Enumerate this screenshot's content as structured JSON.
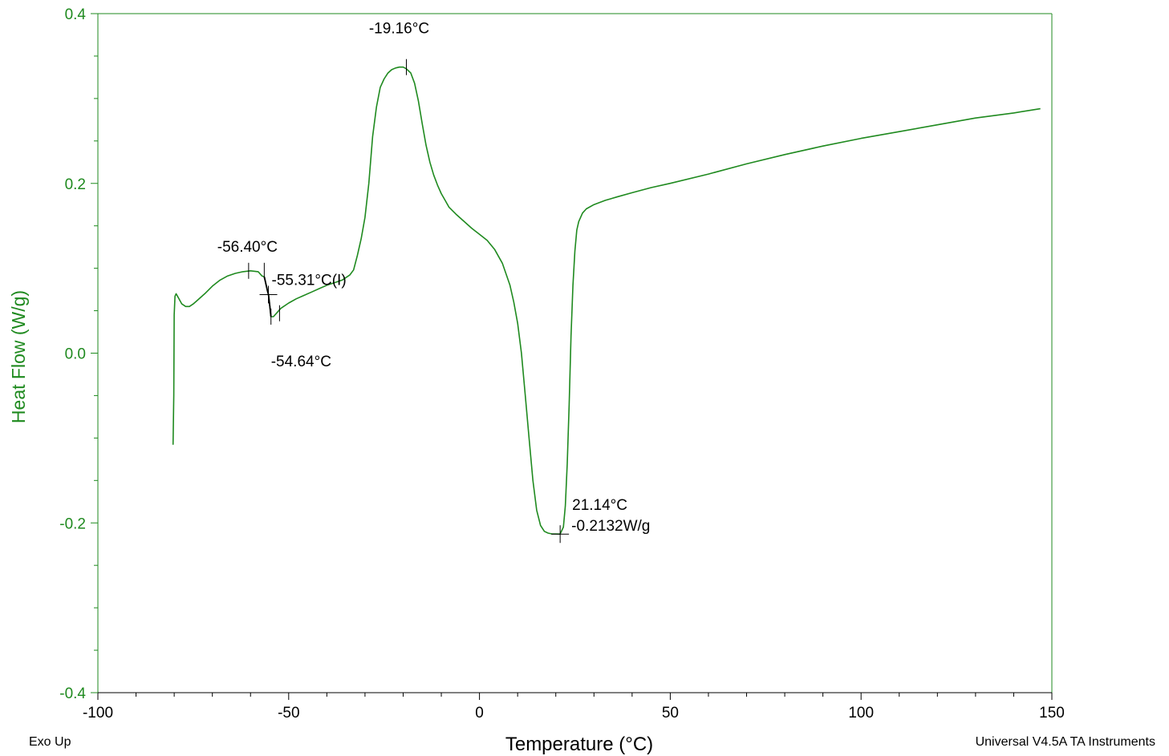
{
  "colors": {
    "series": "#1f8a1f",
    "axis_y": "#1f8a1f",
    "axis_x": "#000000",
    "markers": "#000000"
  },
  "footer": {
    "left": "Exo Up",
    "right": "Universal V4.5A TA Instruments"
  },
  "chart_data": {
    "type": "line",
    "xlabel": "Temperature (°C)",
    "ylabel": "Heat Flow (W/g)",
    "xlim": [
      -100,
      150
    ],
    "ylim": [
      -0.4,
      0.4
    ],
    "xticks": [
      -100,
      -50,
      0,
      50,
      100,
      150
    ],
    "xtick_labels": [
      "-100",
      "-50",
      "0",
      "50",
      "100",
      "150"
    ],
    "yticks": [
      -0.4,
      -0.2,
      0.0,
      0.2,
      0.4
    ],
    "ytick_labels": [
      "-0.4",
      "-0.2",
      "0.0",
      "0.2",
      "0.4"
    ],
    "grid": false,
    "series": [
      {
        "x": [
          -80.3,
          -80.1,
          -80.0,
          -79.8,
          -79.5,
          -79.0,
          -78.0,
          -77.0,
          -76.0,
          -75.0,
          -74.0,
          -72.0,
          -70.0,
          -68.0,
          -66.0,
          -64.0,
          -62.0,
          -60.0,
          -58.0,
          -57.0,
          -56.4,
          -56.0,
          -55.6,
          -55.3,
          -55.0,
          -54.64,
          -54.0,
          -53.0,
          -52.0,
          -50.0,
          -48.0,
          -46.0,
          -44.0,
          -42.0,
          -40.0,
          -38.0,
          -36.0,
          -34.0,
          -33.0,
          -32.0,
          -31.0,
          -30.0,
          -29.0,
          -28.0,
          -27.0,
          -26.0,
          -25.0,
          -24.0,
          -23.0,
          -22.0,
          -21.0,
          -20.0,
          -19.16,
          -18.0,
          -17.0,
          -16.0,
          -15.0,
          -14.0,
          -13.0,
          -12.0,
          -11.0,
          -10.0,
          -9.0,
          -8.0,
          -6.0,
          -4.0,
          -2.0,
          0.0,
          2.0,
          4.0,
          6.0,
          8.0,
          9.0,
          10.0,
          11.0,
          12.0,
          13.0,
          14.0,
          15.0,
          16.0,
          17.0,
          18.0,
          19.0,
          20.0,
          21.14,
          22.0,
          22.5,
          23.0,
          23.5,
          24.0,
          24.5,
          25.0,
          25.5,
          26.0,
          27.0,
          28.0,
          30.0,
          33.0,
          36.0,
          40.0,
          45.0,
          50.0,
          60.0,
          70.0,
          80.0,
          90.0,
          100.0,
          110.0,
          120.0,
          130.0,
          135.0,
          140.0,
          147.0
        ],
        "y": [
          -0.108,
          -0.05,
          0.045,
          0.067,
          0.07,
          0.066,
          0.058,
          0.055,
          0.055,
          0.058,
          0.062,
          0.07,
          0.079,
          0.086,
          0.091,
          0.094,
          0.096,
          0.097,
          0.096,
          0.091,
          0.09,
          0.082,
          0.074,
          0.069,
          0.058,
          0.043,
          0.043,
          0.048,
          0.053,
          0.059,
          0.064,
          0.068,
          0.072,
          0.076,
          0.08,
          0.083,
          0.086,
          0.092,
          0.098,
          0.115,
          0.135,
          0.16,
          0.2,
          0.255,
          0.29,
          0.313,
          0.323,
          0.33,
          0.334,
          0.336,
          0.337,
          0.337,
          0.335,
          0.33,
          0.318,
          0.297,
          0.27,
          0.245,
          0.225,
          0.21,
          0.198,
          0.188,
          0.18,
          0.172,
          0.163,
          0.155,
          0.147,
          0.14,
          0.133,
          0.122,
          0.106,
          0.08,
          0.06,
          0.035,
          0.0,
          -0.05,
          -0.1,
          -0.15,
          -0.185,
          -0.203,
          -0.21,
          -0.212,
          -0.213,
          -0.213,
          -0.2132,
          -0.205,
          -0.18,
          -0.13,
          -0.06,
          0.02,
          0.08,
          0.12,
          0.145,
          0.155,
          0.165,
          0.17,
          0.175,
          0.18,
          0.184,
          0.189,
          0.195,
          0.2,
          0.211,
          0.223,
          0.234,
          0.244,
          0.253,
          0.261,
          0.269,
          0.277,
          0.28,
          0.283,
          0.288
        ]
      }
    ],
    "annotations": [
      {
        "text": "-19.16°C",
        "x": -19.16,
        "y": 0.337
      },
      {
        "text": "-56.40°C",
        "x": -56.4,
        "y": 0.097
      },
      {
        "text": "-55.31°C(I)",
        "x": -55.31,
        "y": 0.069
      },
      {
        "text": "-54.64°C",
        "x": -54.64,
        "y": 0.043
      },
      {
        "text": "21.14°C",
        "x": 21.14,
        "y": -0.2132
      },
      {
        "text": "-0.2132W/g",
        "x": 21.14,
        "y": -0.2132
      }
    ]
  }
}
